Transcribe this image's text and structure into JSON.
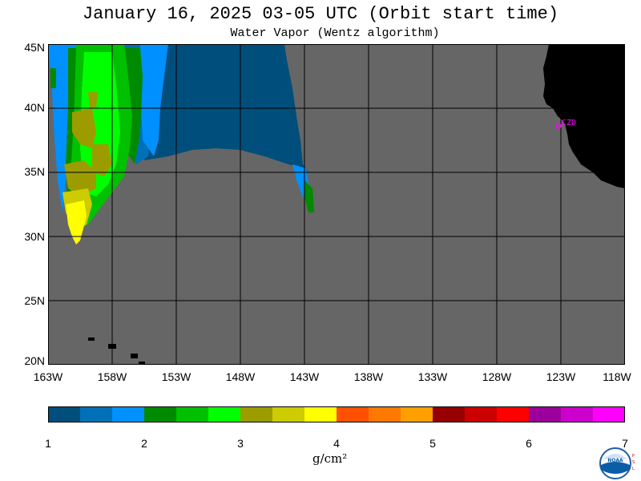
{
  "title": "January 16, 2025  03-05 UTC  (Orbit start time)",
  "subtitle": "Water Vapor (Wentz algorithm)",
  "lat_labels": [
    "45N",
    "40N",
    "35N",
    "30N",
    "25N",
    "20N"
  ],
  "lon_labels": [
    "163W",
    "158W",
    "153W",
    "148W",
    "143W",
    "138W",
    "133W",
    "128W",
    "123W",
    "118W"
  ],
  "station_label": "CZD",
  "colorbar": {
    "ticks": [
      "1",
      "2",
      "3",
      "4",
      "5",
      "6",
      "7"
    ],
    "colors": [
      "#004e7c",
      "#0070b8",
      "#0090ff",
      "#008a00",
      "#00c000",
      "#00ff00",
      "#9c9c00",
      "#cccc00",
      "#ffff00",
      "#ff5000",
      "#ff7800",
      "#ffa000",
      "#960000",
      "#cc0000",
      "#ff0000",
      "#9c009c",
      "#cc00cc",
      "#ff00ff"
    ],
    "units": "g/cm²"
  },
  "colors": {
    "ocean_nodata": "#666666",
    "land": "#000000",
    "grid": "#000000",
    "station": "#ff00ff"
  },
  "logo": {
    "name": "NOAA",
    "side_text": "PSL"
  }
}
